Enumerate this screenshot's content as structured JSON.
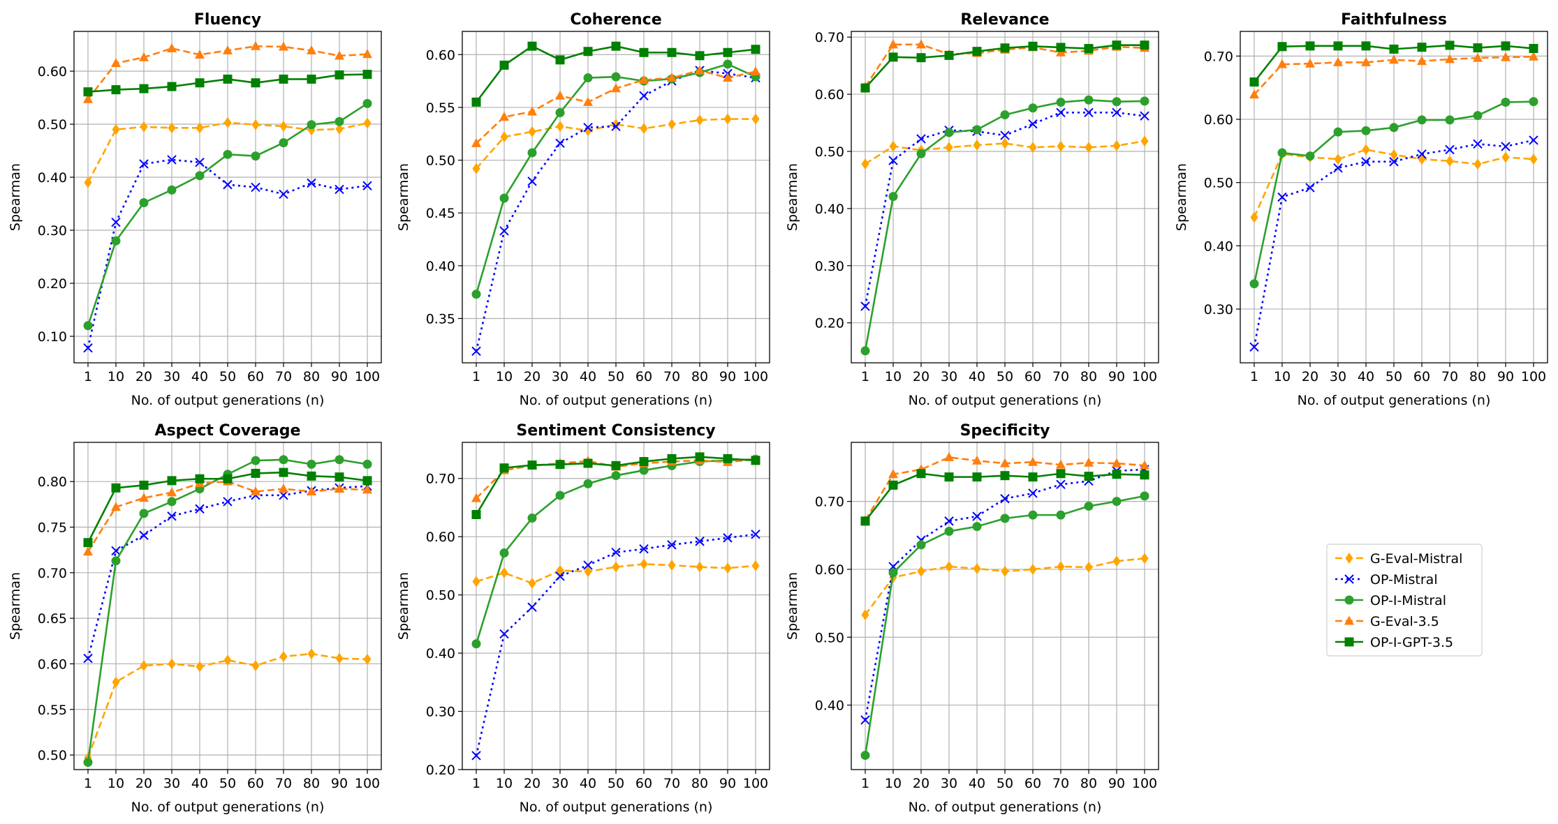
{
  "figure": {
    "xlabel": "No. of output generations (n)",
    "ylabel": "Spearman"
  },
  "legend": {
    "entries": [
      {
        "name": "G-Eval-Mistral",
        "color": "#ffa500",
        "marker": "diamond",
        "dash": "dashed"
      },
      {
        "name": "OP-Mistral",
        "color": "#0000ff",
        "marker": "x",
        "dash": "dotted"
      },
      {
        "name": "OP-I-Mistral",
        "color": "#2ca02c",
        "marker": "circle",
        "dash": "solid"
      },
      {
        "name": "G-Eval-3.5",
        "color": "#ff7f0e",
        "marker": "triangle",
        "dash": "dashed"
      },
      {
        "name": "OP-I-GPT-3.5",
        "color": "#008000",
        "marker": "square",
        "dash": "solid"
      }
    ]
  },
  "chart_data": [
    {
      "type": "line",
      "title": "Fluency",
      "xlabel": "No. of output generations (n)",
      "ylabel": "Spearman",
      "x": [
        "1",
        "10",
        "20",
        "30",
        "40",
        "50",
        "60",
        "70",
        "80",
        "90",
        "100"
      ],
      "ylim": [
        0.05,
        0.675
      ],
      "yticks": [
        0.1,
        0.2,
        0.3,
        0.4,
        0.5,
        0.6
      ],
      "grid": true,
      "series": [
        {
          "name": "G-Eval-Mistral",
          "values": [
            0.39,
            0.49,
            0.495,
            0.493,
            0.493,
            0.503,
            0.499,
            0.496,
            0.489,
            0.491,
            0.502
          ]
        },
        {
          "name": "OP-Mistral",
          "values": [
            0.078,
            0.315,
            0.425,
            0.433,
            0.428,
            0.386,
            0.381,
            0.368,
            0.389,
            0.377,
            0.384
          ]
        },
        {
          "name": "OP-I-Mistral",
          "values": [
            0.12,
            0.28,
            0.352,
            0.376,
            0.403,
            0.443,
            0.44,
            0.465,
            0.499,
            0.505,
            0.539
          ]
        },
        {
          "name": "G-Eval-3.5",
          "values": [
            0.547,
            0.615,
            0.626,
            0.643,
            0.631,
            0.639,
            0.647,
            0.646,
            0.639,
            0.629,
            0.632
          ]
        },
        {
          "name": "OP-I-GPT-3.5",
          "values": [
            0.561,
            0.565,
            0.567,
            0.571,
            0.578,
            0.585,
            0.578,
            0.585,
            0.585,
            0.593,
            0.594
          ]
        }
      ]
    },
    {
      "type": "line",
      "title": "Coherence",
      "xlabel": "No. of output generations (n)",
      "ylabel": "Spearman",
      "x": [
        "1",
        "10",
        "20",
        "30",
        "40",
        "50",
        "60",
        "70",
        "80",
        "90",
        "100"
      ],
      "ylim": [
        0.308,
        0.622
      ],
      "yticks": [
        0.35,
        0.4,
        0.45,
        0.5,
        0.55,
        0.6
      ],
      "grid": true,
      "series": [
        {
          "name": "G-Eval-Mistral",
          "values": [
            0.492,
            0.522,
            0.527,
            0.532,
            0.528,
            0.534,
            0.53,
            0.534,
            0.538,
            0.539,
            0.539
          ]
        },
        {
          "name": "OP-Mistral",
          "values": [
            0.319,
            0.433,
            0.48,
            0.516,
            0.531,
            0.532,
            0.561,
            0.575,
            0.585,
            0.582,
            0.578
          ]
        },
        {
          "name": "OP-I-Mistral",
          "values": [
            0.373,
            0.464,
            0.507,
            0.545,
            0.578,
            0.579,
            0.575,
            0.577,
            0.583,
            0.591,
            0.579
          ]
        },
        {
          "name": "G-Eval-3.5",
          "values": [
            0.516,
            0.541,
            0.546,
            0.561,
            0.555,
            0.568,
            0.576,
            0.578,
            0.585,
            0.578,
            0.584
          ]
        },
        {
          "name": "OP-I-GPT-3.5",
          "values": [
            0.555,
            0.59,
            0.608,
            0.595,
            0.603,
            0.608,
            0.602,
            0.602,
            0.599,
            0.602,
            0.605
          ]
        }
      ]
    },
    {
      "type": "line",
      "title": "Relevance",
      "xlabel": "No. of output generations (n)",
      "ylabel": "Spearman",
      "x": [
        "1",
        "10",
        "20",
        "30",
        "40",
        "50",
        "60",
        "70",
        "80",
        "90",
        "100"
      ],
      "ylim": [
        0.13,
        0.71
      ],
      "yticks": [
        0.2,
        0.3,
        0.4,
        0.5,
        0.6,
        0.7
      ],
      "grid": true,
      "series": [
        {
          "name": "G-Eval-Mistral",
          "values": [
            0.478,
            0.509,
            0.502,
            0.507,
            0.511,
            0.514,
            0.507,
            0.509,
            0.507,
            0.51,
            0.518
          ]
        },
        {
          "name": "OP-Mistral",
          "values": [
            0.229,
            0.484,
            0.522,
            0.537,
            0.535,
            0.528,
            0.548,
            0.568,
            0.568,
            0.568,
            0.562
          ]
        },
        {
          "name": "OP-I-Mistral",
          "values": [
            0.151,
            0.421,
            0.496,
            0.533,
            0.538,
            0.564,
            0.576,
            0.586,
            0.59,
            0.587,
            0.588
          ]
        },
        {
          "name": "G-Eval-3.5",
          "values": [
            0.613,
            0.687,
            0.687,
            0.67,
            0.672,
            0.678,
            0.682,
            0.673,
            0.676,
            0.683,
            0.681
          ]
        },
        {
          "name": "OP-I-GPT-3.5",
          "values": [
            0.611,
            0.665,
            0.664,
            0.668,
            0.675,
            0.681,
            0.684,
            0.682,
            0.68,
            0.686,
            0.686
          ]
        }
      ]
    },
    {
      "type": "line",
      "title": "Faithfulness",
      "xlabel": "No. of output generations (n)",
      "ylabel": "Spearman",
      "x": [
        "1",
        "10",
        "20",
        "30",
        "40",
        "50",
        "60",
        "70",
        "80",
        "90",
        "100"
      ],
      "ylim": [
        0.215,
        0.739
      ],
      "yticks": [
        0.3,
        0.4,
        0.5,
        0.6,
        0.7
      ],
      "grid": true,
      "series": [
        {
          "name": "G-Eval-Mistral",
          "values": [
            0.445,
            0.545,
            0.54,
            0.537,
            0.552,
            0.544,
            0.537,
            0.534,
            0.529,
            0.54,
            0.537
          ]
        },
        {
          "name": "OP-Mistral",
          "values": [
            0.24,
            0.477,
            0.492,
            0.523,
            0.533,
            0.533,
            0.545,
            0.552,
            0.561,
            0.557,
            0.567
          ]
        },
        {
          "name": "OP-I-Mistral",
          "values": [
            0.34,
            0.547,
            0.542,
            0.58,
            0.582,
            0.587,
            0.599,
            0.599,
            0.606,
            0.627,
            0.628
          ]
        },
        {
          "name": "G-Eval-3.5",
          "values": [
            0.639,
            0.687,
            0.688,
            0.69,
            0.69,
            0.694,
            0.692,
            0.695,
            0.697,
            0.698,
            0.699
          ]
        },
        {
          "name": "OP-I-GPT-3.5",
          "values": [
            0.659,
            0.715,
            0.716,
            0.716,
            0.716,
            0.711,
            0.714,
            0.717,
            0.713,
            0.716,
            0.712
          ]
        }
      ]
    },
    {
      "type": "line",
      "title": "Aspect Coverage",
      "xlabel": "No. of output generations (n)",
      "ylabel": "Spearman",
      "x": [
        "1",
        "10",
        "20",
        "30",
        "40",
        "50",
        "60",
        "70",
        "80",
        "90",
        "100"
      ],
      "ylim": [
        0.484,
        0.843
      ],
      "yticks": [
        0.5,
        0.55,
        0.6,
        0.65,
        0.7,
        0.75,
        0.8
      ],
      "grid": true,
      "series": [
        {
          "name": "G-Eval-Mistral",
          "values": [
            0.497,
            0.58,
            0.598,
            0.6,
            0.597,
            0.604,
            0.598,
            0.608,
            0.611,
            0.606,
            0.605
          ]
        },
        {
          "name": "OP-Mistral",
          "values": [
            0.606,
            0.724,
            0.741,
            0.762,
            0.77,
            0.778,
            0.785,
            0.785,
            0.79,
            0.793,
            0.795
          ]
        },
        {
          "name": "OP-I-Mistral",
          "values": [
            0.492,
            0.713,
            0.765,
            0.778,
            0.792,
            0.808,
            0.823,
            0.824,
            0.819,
            0.824,
            0.819
          ]
        },
        {
          "name": "G-Eval-3.5",
          "values": [
            0.723,
            0.772,
            0.782,
            0.788,
            0.798,
            0.8,
            0.789,
            0.792,
            0.789,
            0.792,
            0.791
          ]
        },
        {
          "name": "OP-I-GPT-3.5",
          "values": [
            0.733,
            0.793,
            0.796,
            0.801,
            0.803,
            0.803,
            0.809,
            0.81,
            0.806,
            0.805,
            0.801
          ]
        }
      ]
    },
    {
      "type": "line",
      "title": "Sentiment Consistency",
      "xlabel": "No. of output generations (n)",
      "ylabel": "Spearman",
      "x": [
        "1",
        "10",
        "20",
        "30",
        "40",
        "50",
        "60",
        "70",
        "80",
        "90",
        "100"
      ],
      "ylim": [
        0.2,
        0.762
      ],
      "yticks": [
        0.2,
        0.3,
        0.4,
        0.5,
        0.6,
        0.7
      ],
      "grid": true,
      "series": [
        {
          "name": "G-Eval-Mistral",
          "values": [
            0.523,
            0.538,
            0.52,
            0.542,
            0.54,
            0.548,
            0.553,
            0.551,
            0.548,
            0.546,
            0.55
          ]
        },
        {
          "name": "OP-Mistral",
          "values": [
            0.224,
            0.433,
            0.479,
            0.532,
            0.551,
            0.573,
            0.579,
            0.586,
            0.592,
            0.598,
            0.604
          ]
        },
        {
          "name": "OP-I-Mistral",
          "values": [
            0.416,
            0.572,
            0.632,
            0.671,
            0.691,
            0.705,
            0.714,
            0.722,
            0.729,
            0.731,
            0.733
          ]
        },
        {
          "name": "G-Eval-3.5",
          "values": [
            0.666,
            0.714,
            0.722,
            0.726,
            0.73,
            0.72,
            0.726,
            0.729,
            0.731,
            0.728,
            0.733
          ]
        },
        {
          "name": "OP-I-GPT-3.5",
          "values": [
            0.638,
            0.718,
            0.723,
            0.724,
            0.726,
            0.722,
            0.729,
            0.734,
            0.737,
            0.734,
            0.731
          ]
        }
      ]
    },
    {
      "type": "line",
      "title": "Specificity",
      "xlabel": "No. of output generations (n)",
      "ylabel": "Spearman",
      "x": [
        "1",
        "10",
        "20",
        "30",
        "40",
        "50",
        "60",
        "70",
        "80",
        "90",
        "100"
      ],
      "ylim": [
        0.305,
        0.787
      ],
      "yticks": [
        0.4,
        0.5,
        0.6,
        0.7
      ],
      "grid": true,
      "series": [
        {
          "name": "G-Eval-Mistral",
          "values": [
            0.533,
            0.588,
            0.597,
            0.604,
            0.601,
            0.597,
            0.6,
            0.604,
            0.603,
            0.612,
            0.616
          ]
        },
        {
          "name": "OP-Mistral",
          "values": [
            0.378,
            0.604,
            0.643,
            0.671,
            0.678,
            0.704,
            0.712,
            0.725,
            0.73,
            0.745,
            0.747
          ]
        },
        {
          "name": "OP-I-Mistral",
          "values": [
            0.326,
            0.595,
            0.636,
            0.656,
            0.663,
            0.675,
            0.68,
            0.68,
            0.693,
            0.7,
            0.708
          ]
        },
        {
          "name": "G-Eval-3.5",
          "values": [
            0.672,
            0.74,
            0.747,
            0.765,
            0.76,
            0.756,
            0.758,
            0.754,
            0.757,
            0.756,
            0.753
          ]
        },
        {
          "name": "OP-I-GPT-3.5",
          "values": [
            0.671,
            0.724,
            0.741,
            0.736,
            0.736,
            0.738,
            0.736,
            0.741,
            0.737,
            0.74,
            0.739
          ]
        }
      ]
    }
  ]
}
